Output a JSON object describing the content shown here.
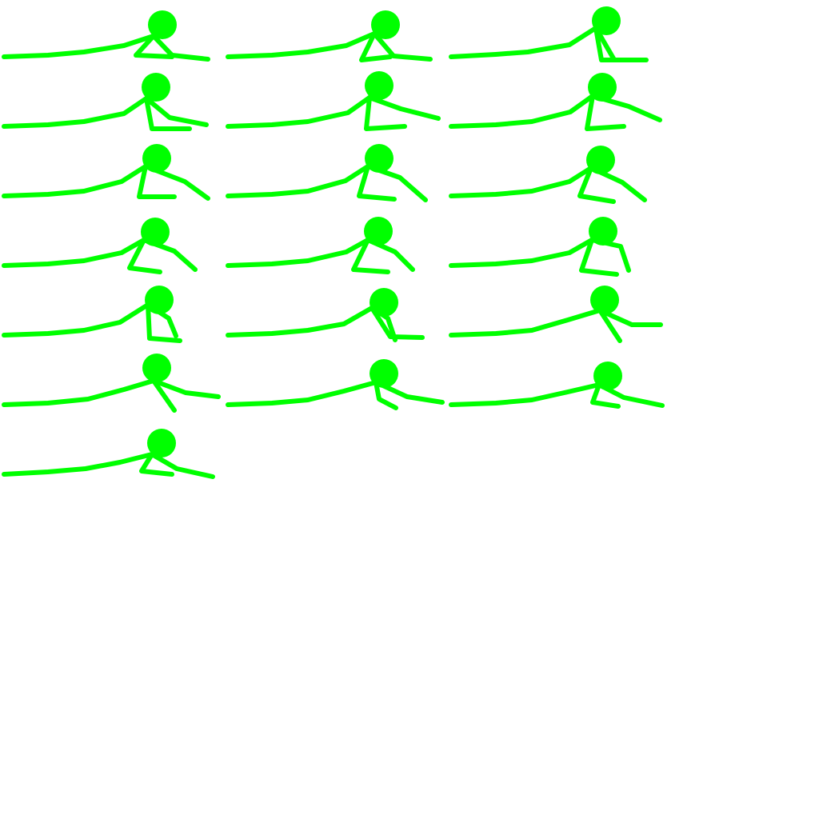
{
  "sprite_sheet": {
    "background": "#ffffff",
    "figure_color": "#00ff00",
    "subject": "stick-figure",
    "animation": "crawling",
    "grid": {
      "columns": 3,
      "rows": 7
    },
    "frame_count": 19
  }
}
